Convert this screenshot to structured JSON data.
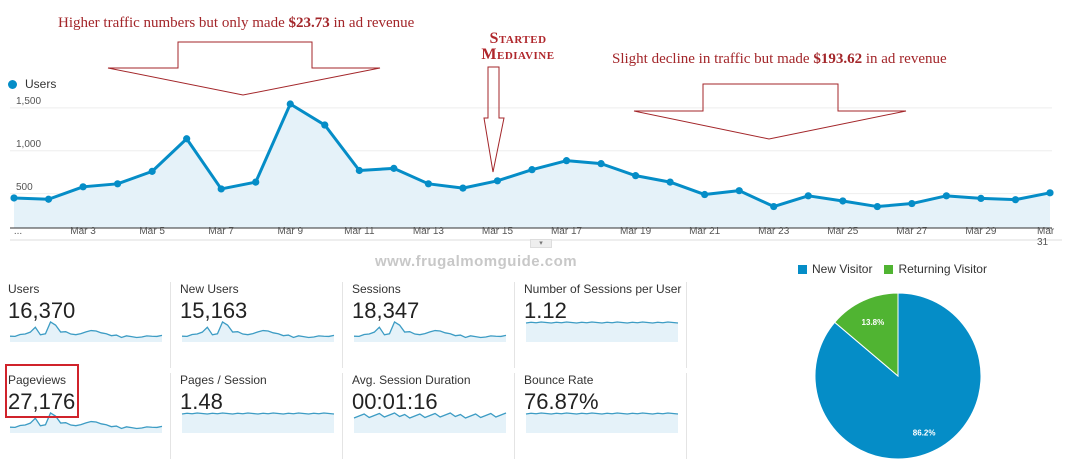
{
  "annotations": {
    "left": {
      "pre": "Higher traffic numbers but only made ",
      "amount": "$23.73",
      "post": " in ad revenue"
    },
    "middle": {
      "line1": "Started",
      "line2": "Mediavine"
    },
    "right": {
      "pre": "Slight decline in traffic but made ",
      "amount": "$193.62",
      "post": " in ad revenue"
    }
  },
  "watermark": "www.frugalmomguide.com",
  "chart_data": [
    {
      "type": "area",
      "legend": "Users",
      "x": [
        "Mar 1",
        "Mar 2",
        "Mar 3",
        "Mar 4",
        "Mar 5",
        "Mar 6",
        "Mar 7",
        "Mar 8",
        "Mar 9",
        "Mar 10",
        "Mar 11",
        "Mar 12",
        "Mar 13",
        "Mar 14",
        "Mar 15",
        "Mar 16",
        "Mar 17",
        "Mar 18",
        "Mar 19",
        "Mar 20",
        "Mar 21",
        "Mar 22",
        "Mar 23",
        "Mar 24",
        "Mar 25",
        "Mar 26",
        "Mar 27",
        "Mar 28",
        "Mar 29",
        "Mar 30",
        "Mar 31"
      ],
      "series": [
        {
          "name": "Users",
          "values": [
            450,
            435,
            580,
            615,
            760,
            1140,
            555,
            635,
            1545,
            1300,
            770,
            795,
            615,
            565,
            650,
            780,
            885,
            850,
            710,
            635,
            490,
            535,
            350,
            475,
            415,
            350,
            385,
            475,
            445,
            430,
            510
          ]
        }
      ],
      "x_tick_labels": [
        "...",
        "Mar 3",
        "Mar 5",
        "Mar 7",
        "Mar 9",
        "Mar 11",
        "Mar 13",
        "Mar 15",
        "Mar 17",
        "Mar 19",
        "Mar 21",
        "Mar 23",
        "Mar 25",
        "Mar 27",
        "Mar 29",
        "Mar 31"
      ],
      "y_tick_labels": [
        "500",
        "1,000",
        "1,500"
      ],
      "yticks": [
        500,
        1000,
        1500
      ],
      "ylim": [
        100,
        1650
      ],
      "grid": true,
      "color": "#058dc7",
      "fill": "#e5f2f9"
    },
    {
      "type": "pie",
      "categories": [
        "New Visitor",
        "Returning Visitor"
      ],
      "values": [
        86.2,
        13.8
      ],
      "labels": [
        "86.2%",
        "13.8%"
      ],
      "colors": [
        "#058dc7",
        "#50b432"
      ],
      "legend": "top"
    }
  ],
  "metrics": [
    {
      "label": "Users",
      "value": "16,370",
      "spark": "traffic"
    },
    {
      "label": "New Users",
      "value": "15,163",
      "spark": "traffic"
    },
    {
      "label": "Sessions",
      "value": "18,347",
      "spark": "traffic"
    },
    {
      "label": "Number of Sessions per User",
      "value": "1.12",
      "spark": "flat"
    },
    {
      "label": "Pageviews",
      "value": "27,176",
      "spark": "traffic",
      "highlighted": true
    },
    {
      "label": "Pages / Session",
      "value": "1.48",
      "spark": "flat"
    },
    {
      "label": "Avg. Session Duration",
      "value": "00:01:16",
      "spark": "noisy"
    },
    {
      "label": "Bounce Rate",
      "value": "76.87%",
      "spark": "flat"
    }
  ],
  "highlight_color": "#d0232b",
  "annotation_color": "#a3262a"
}
